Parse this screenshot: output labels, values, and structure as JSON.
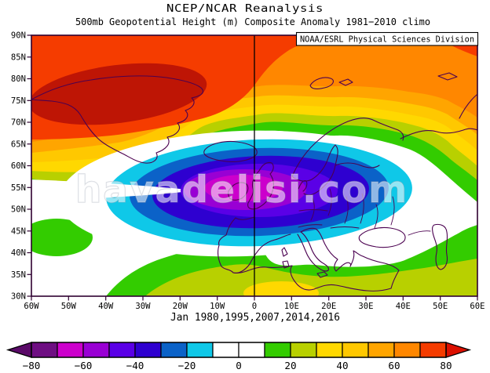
{
  "header": {
    "title": "NCEP/NCAR Reanalysis",
    "subtitle": "500mb Geopotential Height (m) Composite Anomaly 1981−2010 climo",
    "credit": "NOAA/ESRL Physical Sciences Division"
  },
  "caption": "Jan 1980,1995,2007,2014,2016",
  "watermark": "havadelisi.com",
  "axes": {
    "lat_labels": [
      "90N",
      "85N",
      "80N",
      "75N",
      "70N",
      "65N",
      "60N",
      "55N",
      "50N",
      "45N",
      "40N",
      "35N",
      "30N"
    ],
    "lon_labels": [
      "60W",
      "50W",
      "40W",
      "30W",
      "20W",
      "10W",
      "0",
      "10E",
      "20E",
      "30E",
      "40E",
      "50E",
      "60E"
    ]
  },
  "colorbar": {
    "tick_labels": [
      "−80",
      "−60",
      "−40",
      "−20",
      "0",
      "20",
      "40",
      "60",
      "80"
    ],
    "segments": [
      "#6E0E82",
      "#CC00CC",
      "#9900D4",
      "#5A00E6",
      "#2E00D0",
      "#0B62C8",
      "#0FC8E8",
      "#FFFFFF",
      "#FFFFFF",
      "#33CC00",
      "#B8D000",
      "#FFD800",
      "#FFC800",
      "#FFA500",
      "#FF8700",
      "#F53C00"
    ],
    "arrow_low_color": "#5A0A68",
    "arrow_high_color": "#DC1000"
  },
  "palette": {
    "over_80": "#BE1505",
    "white": "#FFFFFF",
    "coast": "#4B0150",
    "frame": "#2E0030",
    "zero_line": "#000000"
  },
  "chart_data": {
    "type": "heatmap",
    "subtype": "filled-contour-map",
    "title": "NCEP/NCAR Reanalysis",
    "subtitle": "500mb Geopotential Height (m) Composite Anomaly 1981−2010 climo",
    "caption": "Jan 1980,1995,2007,2014,2016",
    "variable": "500mb geopotential height anomaly",
    "units": "m",
    "xlabel": "longitude",
    "ylabel": "latitude",
    "xlim": [
      "60W",
      "60E"
    ],
    "ylim": [
      "30N",
      "90N"
    ],
    "lat_ticks": [
      "90N",
      "85N",
      "80N",
      "75N",
      "70N",
      "65N",
      "60N",
      "55N",
      "50N",
      "45N",
      "40N",
      "35N",
      "30N"
    ],
    "lon_ticks": [
      "60W",
      "50W",
      "40W",
      "30W",
      "20W",
      "10W",
      "0",
      "10E",
      "20E",
      "30E",
      "40E",
      "50E",
      "60E"
    ],
    "colorbar_levels": [
      -80,
      -60,
      -40,
      -20,
      0,
      20,
      40,
      60,
      80
    ],
    "contour_interval": 10,
    "legend_position": "bottom colorbar",
    "grid": false,
    "features": [
      {
        "name": "negative-anomaly-center",
        "location": "~57N 5W over British Isles / NE Atlantic",
        "value": "-60 to -70 m"
      },
      {
        "name": "negative-anomaly-extent",
        "location": "40W-35E, 45N-65N across Europe",
        "value": "below -20 m"
      },
      {
        "name": "positive-anomaly-center",
        "location": "Greenland ~75N 40W",
        "value": "above +80 m"
      },
      {
        "name": "positive-arctic-band",
        "location": "high latitudes 70N-90N",
        "value": "+50 to +80 m"
      },
      {
        "name": "positive-subtropical-band",
        "location": "North Africa / Middle East 30N-38N",
        "value": "+10 to +40 m"
      }
    ]
  }
}
